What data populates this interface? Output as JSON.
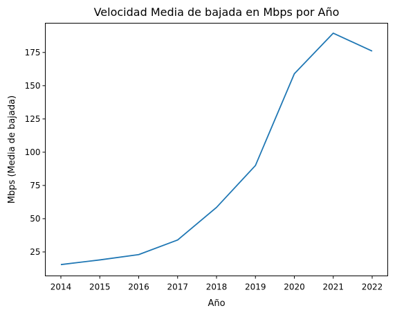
{
  "chart_data": {
    "type": "line",
    "title": "Velocidad Media de bajada en Mbps por Año",
    "xlabel": "Año",
    "ylabel": "Mbps (Media de bajada)",
    "x": [
      2014,
      2015,
      2016,
      2017,
      2018,
      2019,
      2020,
      2021,
      2022
    ],
    "x_ticks": [
      "2014",
      "2015",
      "2016",
      "2017",
      "2018",
      "2019",
      "2020",
      "2021",
      "2022"
    ],
    "y_ticks": [
      25,
      50,
      75,
      100,
      125,
      150,
      175
    ],
    "ylim": [
      7,
      197
    ],
    "xlim": [
      2013.6,
      2022.4
    ],
    "series": [
      {
        "values": [
          15.5,
          19,
          23,
          34,
          58.5,
          90,
          159,
          189.5,
          176
        ],
        "color": "#1f77b4"
      }
    ],
    "grid": false
  }
}
